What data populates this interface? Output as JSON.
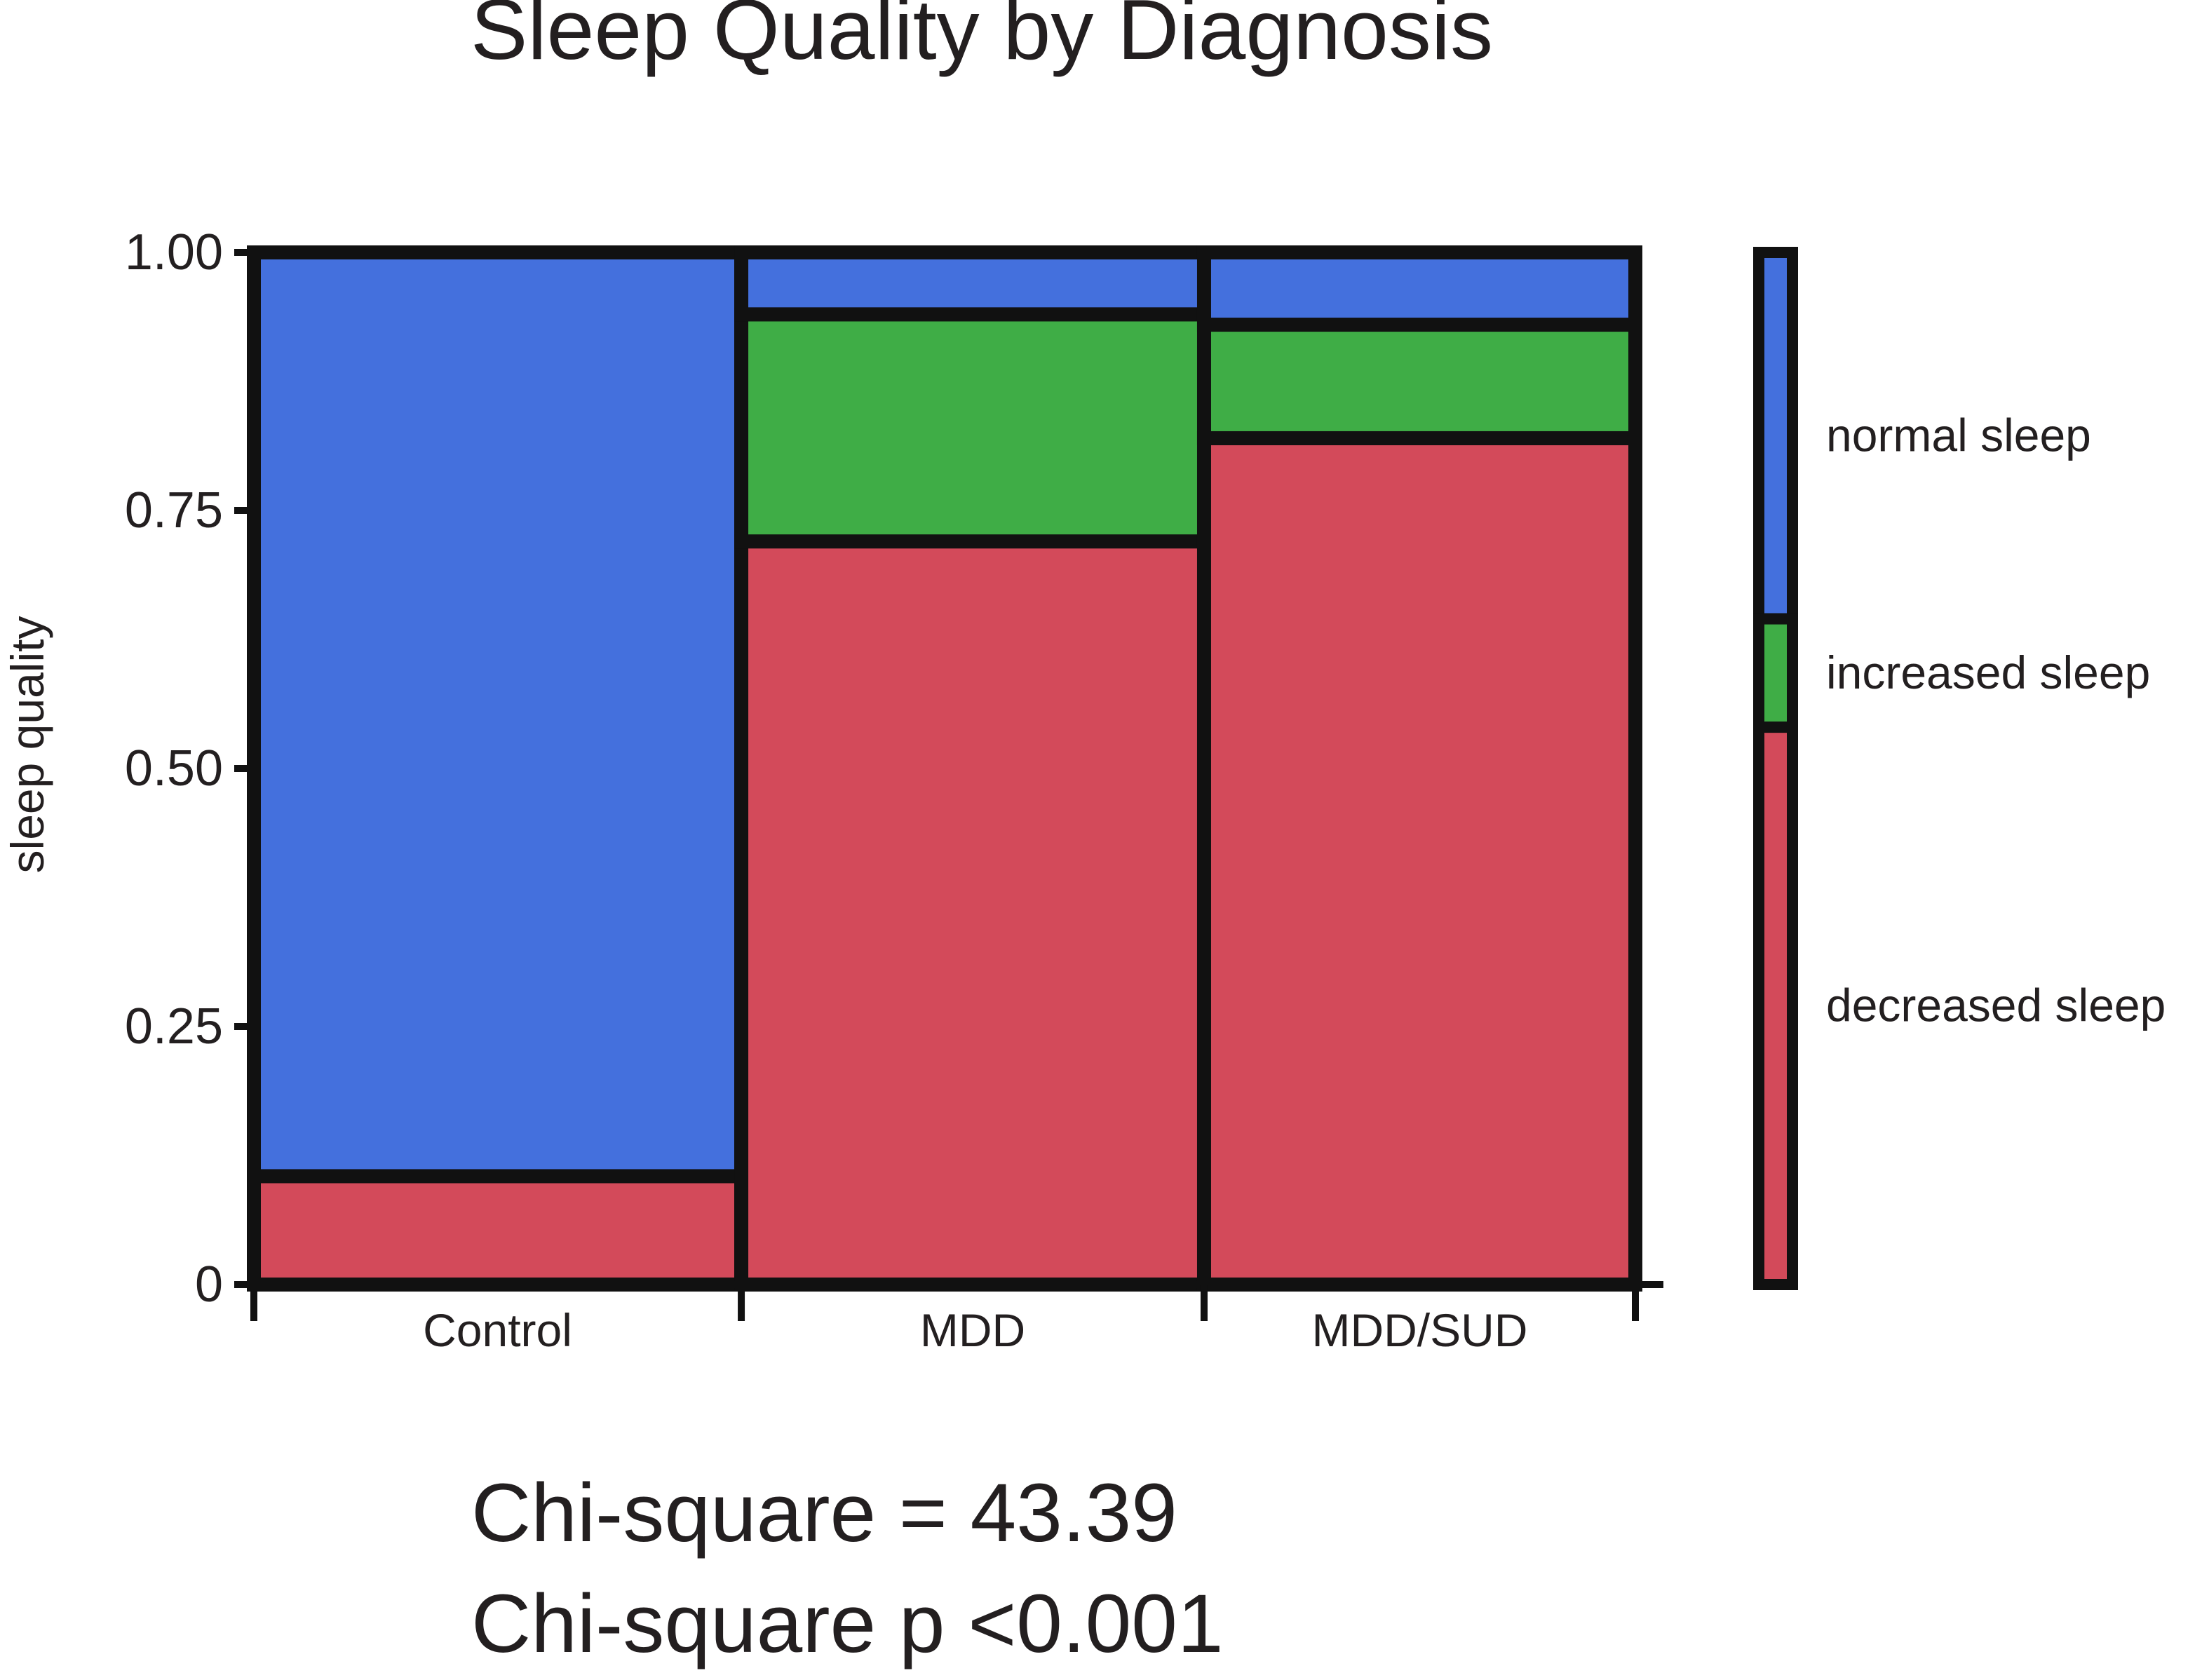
{
  "chart_data": {
    "type": "mosaic",
    "title": "Sleep Quality by Diagnosis",
    "xlabel": "",
    "ylabel": "sleep quality",
    "ylim": [
      0,
      1
    ],
    "yticks": [
      {
        "value": 0,
        "label": "0"
      },
      {
        "value": 0.25,
        "label": "0.25"
      },
      {
        "value": 0.5,
        "label": "0.50"
      },
      {
        "value": 0.75,
        "label": "0.75"
      },
      {
        "value": 1,
        "label": "1.00"
      }
    ],
    "categories": [
      "Control",
      "MDD",
      "MDD/SUD"
    ],
    "category_widths": [
      0.356,
      0.338,
      0.315
    ],
    "series": [
      {
        "name": "decreased sleep",
        "color": "#d34a5a",
        "values": [
          0.105,
          0.72,
          0.82
        ]
      },
      {
        "name": "increased sleep",
        "color": "#3fad46",
        "values": [
          0.0,
          0.22,
          0.11
        ]
      },
      {
        "name": "normal sleep",
        "color": "#4470dd",
        "values": [
          0.895,
          0.06,
          0.07
        ]
      }
    ],
    "legend": {
      "placement": "right",
      "items": [
        {
          "name": "normal sleep",
          "fraction": 0.355
        },
        {
          "name": "increased sleep",
          "fraction": 0.105
        },
        {
          "name": "decreased sleep",
          "fraction": 0.54
        }
      ]
    }
  },
  "stats": {
    "line1": "Chi-square = 43.39",
    "line2": "Chi-square p <0.001"
  }
}
